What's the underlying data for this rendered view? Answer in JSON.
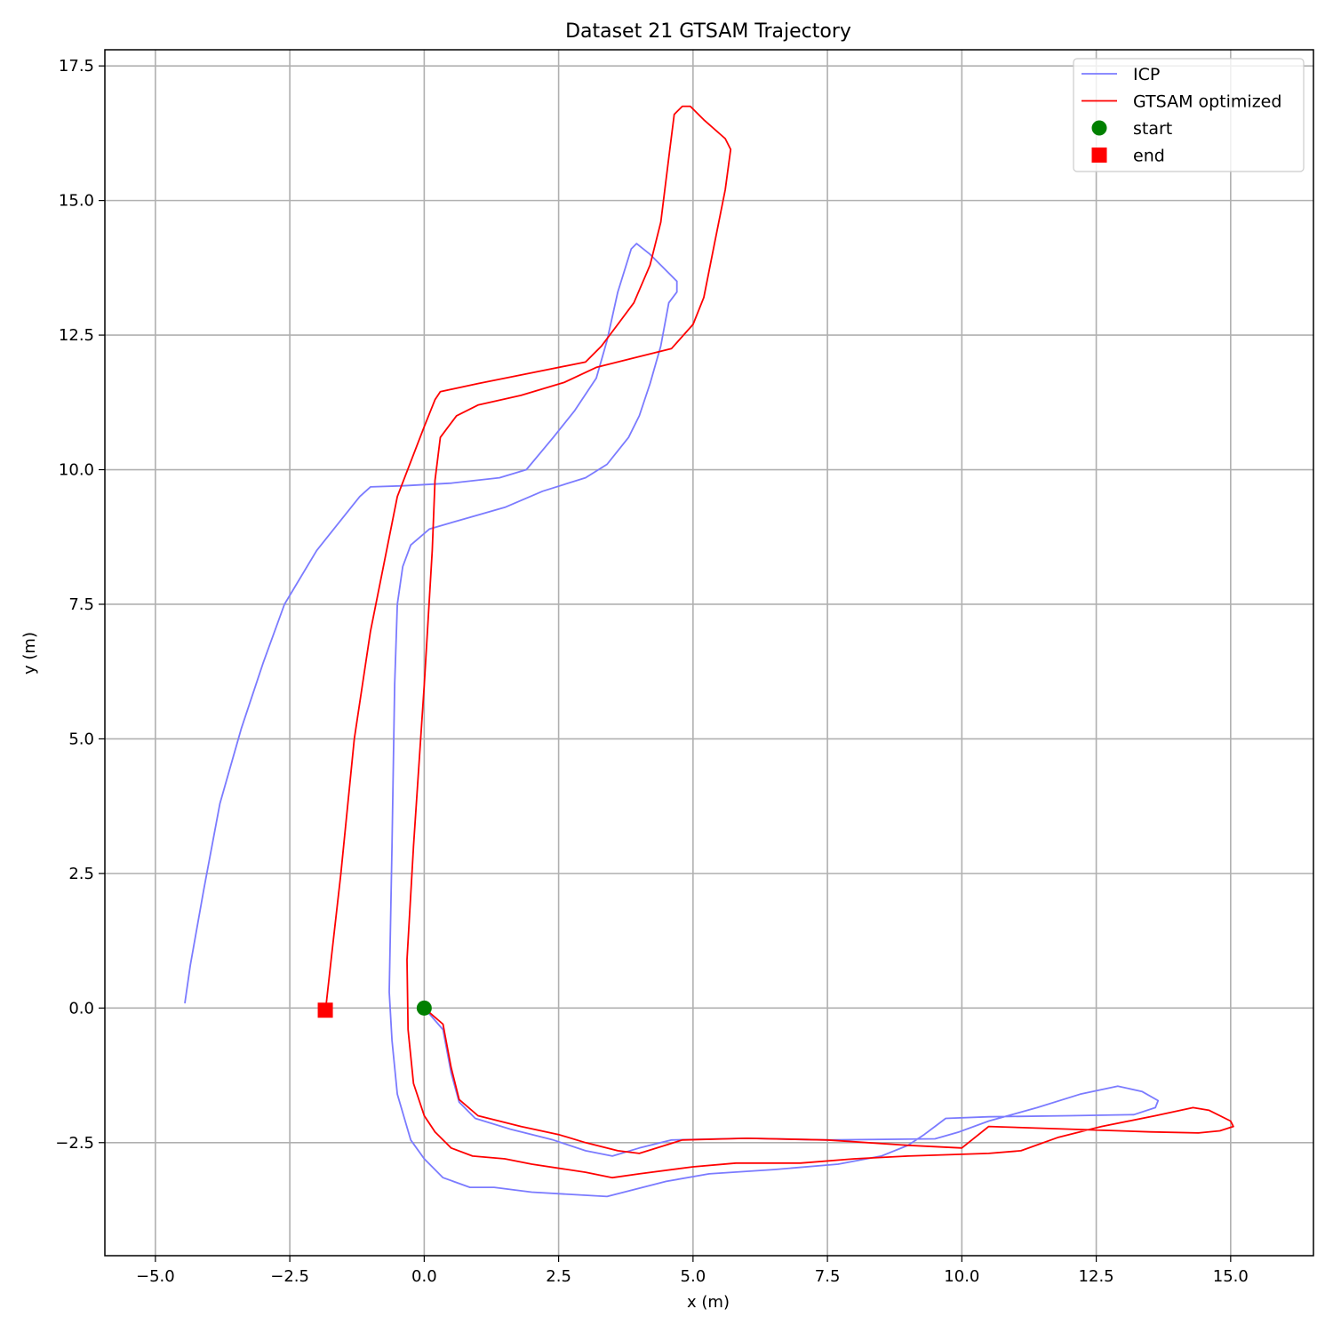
{
  "chart_data": {
    "type": "line",
    "title": "Dataset 21 GTSAM Trajectory",
    "xlabel": "x (m)",
    "ylabel": "y (m)",
    "xlim": [
      -5.94,
      16.54
    ],
    "ylim": [
      -4.6,
      17.8
    ],
    "xticks": [
      -5.0,
      -2.5,
      0.0,
      2.5,
      5.0,
      7.5,
      10.0,
      12.5,
      15.0
    ],
    "xtick_labels": [
      "−5.0",
      "−2.5",
      "0.0",
      "2.5",
      "5.0",
      "7.5",
      "10.0",
      "12.5",
      "15.0"
    ],
    "yticks": [
      -2.5,
      0.0,
      2.5,
      5.0,
      7.5,
      10.0,
      12.5,
      15.0,
      17.5
    ],
    "ytick_labels": [
      "−2.5",
      "0.0",
      "2.5",
      "5.0",
      "7.5",
      "10.0",
      "12.5",
      "15.0",
      "17.5"
    ],
    "grid": true,
    "legend_position": "top-right",
    "series": [
      {
        "name": "ICP",
        "kind": "line",
        "color": "#7b7bff",
        "points": [
          [
            0.0,
            0.0
          ],
          [
            0.35,
            -0.4
          ],
          [
            0.5,
            -1.2
          ],
          [
            0.65,
            -1.75
          ],
          [
            0.95,
            -2.05
          ],
          [
            1.6,
            -2.25
          ],
          [
            2.4,
            -2.45
          ],
          [
            3.0,
            -2.65
          ],
          [
            3.5,
            -2.75
          ],
          [
            4.0,
            -2.6
          ],
          [
            4.6,
            -2.45
          ],
          [
            6.0,
            -2.42
          ],
          [
            7.5,
            -2.45
          ],
          [
            9.5,
            -2.43
          ],
          [
            9.95,
            -2.3
          ],
          [
            10.5,
            -2.1
          ],
          [
            11.4,
            -1.85
          ],
          [
            12.2,
            -1.6
          ],
          [
            12.9,
            -1.45
          ],
          [
            13.35,
            -1.55
          ],
          [
            13.65,
            -1.72
          ],
          [
            13.6,
            -1.85
          ],
          [
            13.2,
            -1.98
          ],
          [
            12.0,
            -2.0
          ],
          [
            10.5,
            -2.02
          ],
          [
            9.7,
            -2.05
          ],
          [
            9.5,
            -2.2
          ],
          [
            9.3,
            -2.35
          ],
          [
            9.0,
            -2.55
          ],
          [
            8.5,
            -2.75
          ],
          [
            7.7,
            -2.9
          ],
          [
            6.5,
            -3.0
          ],
          [
            5.3,
            -3.08
          ],
          [
            4.5,
            -3.22
          ],
          [
            3.4,
            -3.5
          ],
          [
            2.0,
            -3.42
          ],
          [
            1.3,
            -3.33
          ],
          [
            0.85,
            -3.33
          ],
          [
            0.35,
            -3.15
          ],
          [
            0.0,
            -2.8
          ],
          [
            -0.25,
            -2.45
          ],
          [
            -0.5,
            -1.6
          ],
          [
            -0.6,
            -0.6
          ],
          [
            -0.65,
            0.3
          ],
          [
            -0.6,
            3.0
          ],
          [
            -0.55,
            6.0
          ],
          [
            -0.5,
            7.5
          ],
          [
            -0.4,
            8.2
          ],
          [
            -0.25,
            8.6
          ],
          [
            0.1,
            8.9
          ],
          [
            0.8,
            9.1
          ],
          [
            1.5,
            9.3
          ],
          [
            2.2,
            9.6
          ],
          [
            3.0,
            9.85
          ],
          [
            3.4,
            10.1
          ],
          [
            3.8,
            10.6
          ],
          [
            4.0,
            11.0
          ],
          [
            4.2,
            11.6
          ],
          [
            4.4,
            12.3
          ],
          [
            4.55,
            13.1
          ],
          [
            4.7,
            13.3
          ],
          [
            4.7,
            13.5
          ],
          [
            4.2,
            14.0
          ],
          [
            3.95,
            14.2
          ],
          [
            3.85,
            14.1
          ],
          [
            3.6,
            13.3
          ],
          [
            3.4,
            12.4
          ],
          [
            3.2,
            11.7
          ],
          [
            2.8,
            11.1
          ],
          [
            2.4,
            10.6
          ],
          [
            1.9,
            10.0
          ],
          [
            1.4,
            9.85
          ],
          [
            0.5,
            9.75
          ],
          [
            -0.4,
            9.7
          ],
          [
            -1.0,
            9.68
          ],
          [
            -1.2,
            9.5
          ],
          [
            -2.0,
            8.5
          ],
          [
            -2.6,
            7.5
          ],
          [
            -3.0,
            6.4
          ],
          [
            -3.4,
            5.2
          ],
          [
            -3.8,
            3.8
          ],
          [
            -4.1,
            2.2
          ],
          [
            -4.35,
            0.8
          ],
          [
            -4.45,
            0.1
          ]
        ]
      },
      {
        "name": "GTSAM optimized",
        "kind": "line",
        "color": "#ff0000",
        "points": [
          [
            0.0,
            0.0
          ],
          [
            0.35,
            -0.3
          ],
          [
            0.5,
            -1.1
          ],
          [
            0.65,
            -1.7
          ],
          [
            1.0,
            -2.0
          ],
          [
            1.8,
            -2.2
          ],
          [
            2.5,
            -2.35
          ],
          [
            3.0,
            -2.5
          ],
          [
            3.6,
            -2.65
          ],
          [
            4.0,
            -2.7
          ],
          [
            4.8,
            -2.45
          ],
          [
            6.0,
            -2.42
          ],
          [
            7.5,
            -2.45
          ],
          [
            9.0,
            -2.55
          ],
          [
            10.0,
            -2.6
          ],
          [
            10.5,
            -2.2
          ],
          [
            12.0,
            -2.25
          ],
          [
            13.5,
            -2.3
          ],
          [
            14.4,
            -2.32
          ],
          [
            14.8,
            -2.28
          ],
          [
            15.05,
            -2.2
          ],
          [
            15.0,
            -2.1
          ],
          [
            14.6,
            -1.9
          ],
          [
            14.3,
            -1.85
          ],
          [
            13.6,
            -2.0
          ],
          [
            12.6,
            -2.2
          ],
          [
            11.8,
            -2.4
          ],
          [
            11.1,
            -2.65
          ],
          [
            10.5,
            -2.7
          ],
          [
            9.0,
            -2.75
          ],
          [
            8.0,
            -2.8
          ],
          [
            7.0,
            -2.88
          ],
          [
            5.8,
            -2.88
          ],
          [
            5.0,
            -2.95
          ],
          [
            4.0,
            -3.08
          ],
          [
            3.5,
            -3.15
          ],
          [
            3.0,
            -3.05
          ],
          [
            2.0,
            -2.9
          ],
          [
            1.5,
            -2.8
          ],
          [
            0.9,
            -2.75
          ],
          [
            0.5,
            -2.6
          ],
          [
            0.2,
            -2.3
          ],
          [
            0.0,
            -2.0
          ],
          [
            -0.2,
            -1.4
          ],
          [
            -0.3,
            -0.4
          ],
          [
            -0.32,
            0.9
          ],
          [
            -0.2,
            3.0
          ],
          [
            0.0,
            6.0
          ],
          [
            0.15,
            8.5
          ],
          [
            0.2,
            9.8
          ],
          [
            0.3,
            10.6
          ],
          [
            0.6,
            11.0
          ],
          [
            1.0,
            11.2
          ],
          [
            1.8,
            11.38
          ],
          [
            2.6,
            11.62
          ],
          [
            3.2,
            11.9
          ],
          [
            4.0,
            12.1
          ],
          [
            4.6,
            12.25
          ],
          [
            5.0,
            12.7
          ],
          [
            5.2,
            13.2
          ],
          [
            5.4,
            14.2
          ],
          [
            5.6,
            15.2
          ],
          [
            5.7,
            15.95
          ],
          [
            5.6,
            16.15
          ],
          [
            5.2,
            16.5
          ],
          [
            4.95,
            16.75
          ],
          [
            4.8,
            16.75
          ],
          [
            4.65,
            16.6
          ],
          [
            4.55,
            15.8
          ],
          [
            4.4,
            14.6
          ],
          [
            4.2,
            13.8
          ],
          [
            3.9,
            13.1
          ],
          [
            3.6,
            12.7
          ],
          [
            3.3,
            12.3
          ],
          [
            3.0,
            12.0
          ],
          [
            2.0,
            11.8
          ],
          [
            1.0,
            11.6
          ],
          [
            0.3,
            11.45
          ],
          [
            0.2,
            11.3
          ],
          [
            0.0,
            10.8
          ],
          [
            -0.5,
            9.5
          ],
          [
            -0.8,
            8.0
          ],
          [
            -1.0,
            7.0
          ],
          [
            -1.3,
            5.0
          ],
          [
            -1.55,
            2.5
          ],
          [
            -1.72,
            1.0
          ],
          [
            -1.83,
            0.0
          ]
        ]
      },
      {
        "name": "start",
        "kind": "marker",
        "marker": "circle",
        "color": "#008000",
        "points": [
          [
            0.0,
            0.0
          ]
        ]
      },
      {
        "name": "end",
        "kind": "marker",
        "marker": "square",
        "color": "#ff0000",
        "points": [
          [
            -1.84,
            -0.04
          ]
        ]
      }
    ]
  }
}
